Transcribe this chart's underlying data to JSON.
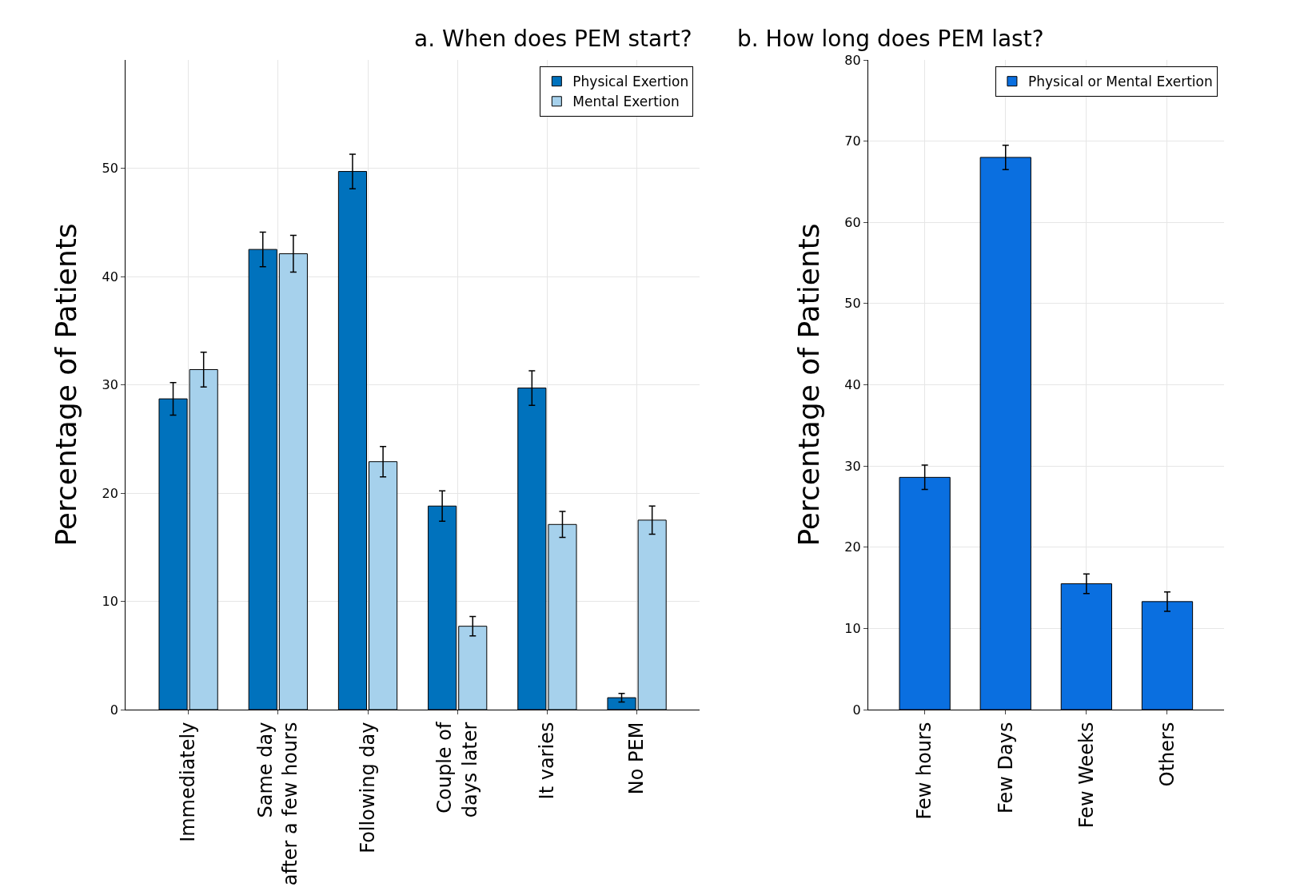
{
  "chart_data": [
    {
      "type": "bar",
      "title": "a. When does PEM start?",
      "ylabel": "Percentage of Patients",
      "categories": [
        "Immediately",
        "Same day\nafter a few hours",
        "Following day",
        "Couple of\ndays later",
        "It varies",
        "No PEM"
      ],
      "series": [
        {
          "name": "Physical Exertion",
          "color": "#0072bd",
          "values": [
            28.7,
            42.5,
            49.7,
            18.8,
            29.7,
            1.1
          ],
          "errors": [
            1.5,
            1.6,
            1.6,
            1.4,
            1.6,
            0.4
          ]
        },
        {
          "name": "Mental Exertion",
          "color": "#a6d1ec",
          "values": [
            31.4,
            42.1,
            22.9,
            7.7,
            17.1,
            17.5
          ],
          "errors": [
            1.6,
            1.7,
            1.4,
            0.9,
            1.2,
            1.3
          ]
        }
      ],
      "ylim": [
        0,
        60
      ],
      "yticks": [
        0,
        10,
        20,
        30,
        40,
        50
      ],
      "grid": true,
      "legend": "top right"
    },
    {
      "type": "bar",
      "title": "b. How long does PEM last?",
      "ylabel": "Percentage of Patients",
      "categories": [
        "Few hours",
        "Few Days",
        "Few Weeks",
        "Others"
      ],
      "series": [
        {
          "name": "Physical or Mental Exertion",
          "color": "#0a6fe0",
          "values": [
            28.6,
            68.0,
            15.5,
            13.3
          ],
          "errors": [
            1.5,
            1.5,
            1.2,
            1.2
          ]
        }
      ],
      "ylim": [
        0,
        80
      ],
      "yticks": [
        0,
        10,
        20,
        30,
        40,
        50,
        60,
        70,
        80
      ],
      "grid": true,
      "legend": "top right"
    }
  ]
}
